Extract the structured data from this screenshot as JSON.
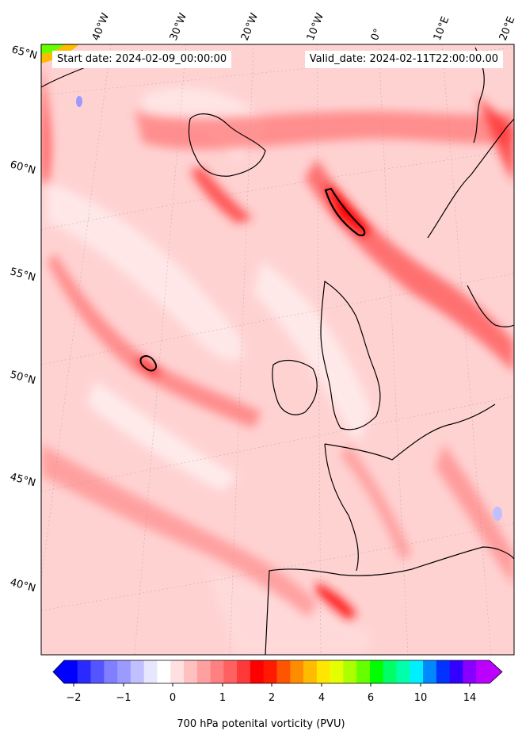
{
  "map": {
    "start_date": "Start date: 2024-02-09_00:00:00",
    "valid_date": "Valid_date: 2024-02-11T22:00:00.00",
    "lon_labels": [
      "40°W",
      "30°W",
      "20°W",
      "10°W",
      "0°",
      "10°E",
      "20°E"
    ],
    "lat_labels": [
      "65°N",
      "60°N",
      "55°N",
      "50°N",
      "45°N",
      "40°N"
    ],
    "ocean_color": "#ffd0d0",
    "coast_color": "#000000"
  },
  "colorbar": {
    "title": "700 hPa potenital vorticity (PVU)",
    "tick_labels": [
      "−2",
      "−1",
      "0",
      "1",
      "2",
      "4",
      "6",
      "10",
      "14"
    ],
    "colors": [
      "#0000ff",
      "#2a2aff",
      "#5555ff",
      "#7f7fff",
      "#9a9aff",
      "#c0c0ff",
      "#e6e6ff",
      "#ffffff",
      "#ffe0e0",
      "#ffc0c0",
      "#ffa0a0",
      "#ff8080",
      "#ff6060",
      "#ff3838",
      "#ff0000",
      "#ff1a00",
      "#ff5500",
      "#ff8c00",
      "#ffbb00",
      "#ffe600",
      "#e6ff00",
      "#aaff00",
      "#66ff00",
      "#00ff00",
      "#00ff66",
      "#00ffaa",
      "#00eeff",
      "#0088ff",
      "#0033ff",
      "#3300ff",
      "#8800ff",
      "#bb00ff"
    ]
  }
}
